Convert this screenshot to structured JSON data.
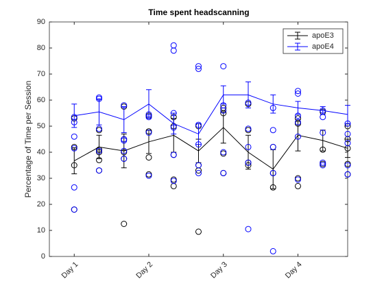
{
  "chart_data": {
    "type": "errorbar_scatter",
    "title": "Time spent headscanning",
    "y_label": "Percentage of Time per Session",
    "x": [
      1,
      2,
      3,
      4,
      5,
      6,
      7,
      8,
      9,
      10,
      11,
      12
    ],
    "xlim": [
      0,
      12
    ],
    "xticks": [
      {
        "value": 1,
        "label": "Day 1"
      },
      {
        "value": 4,
        "label": "Day 2"
      },
      {
        "value": 7,
        "label": "Day 3"
      },
      {
        "value": 10,
        "label": "Day 4"
      }
    ],
    "ylim": [
      0,
      90
    ],
    "yticks": [
      0,
      10,
      20,
      30,
      40,
      50,
      60,
      70,
      80,
      90
    ],
    "legend": "northeast",
    "series": [
      {
        "name": "apoE3",
        "color": "#000000",
        "values": [
          36.7,
          42,
          40.5,
          44,
          46.5,
          40.5,
          49.5,
          40,
          33.5,
          46.5,
          44.5,
          41.5
        ],
        "errors": [
          5,
          4.5,
          6.5,
          4.5,
          6.5,
          4.5,
          6,
          6.5,
          7.5,
          6,
          4,
          3.5
        ],
        "individual": [
          [
            53,
            42,
            35,
            18
          ],
          [
            48.5,
            41,
            40,
            37,
            33
          ],
          [
            57.5,
            45,
            40,
            37.5,
            12.5
          ],
          [
            54,
            48,
            38,
            31.5
          ],
          [
            53.5,
            50,
            39,
            29.5,
            27
          ],
          [
            50,
            35,
            33,
            9.5
          ],
          [
            57,
            55,
            39.5,
            32
          ],
          [
            58.5,
            48.5,
            36,
            35
          ],
          [
            42,
            32,
            26.5
          ],
          [
            53,
            51,
            30,
            27
          ],
          [
            55.5,
            41,
            35.5
          ],
          [
            50,
            45,
            41.5,
            35.5,
            31.5
          ]
        ]
      },
      {
        "name": "apoE4",
        "color": "#0000ff",
        "values": [
          54,
          55.5,
          52.5,
          58.5,
          51,
          47,
          62,
          62,
          58.5,
          57,
          56,
          54.5
        ],
        "errors": [
          4.5,
          5,
          5,
          5.5,
          4,
          4,
          3.5,
          5,
          3.5,
          2.5,
          1.5,
          3.5
        ],
        "individual": [
          [
            53.5,
            51.5,
            46,
            41.5,
            26.5,
            18
          ],
          [
            61,
            60.5,
            49,
            40.5,
            33
          ],
          [
            58,
            45,
            44.5,
            40.5,
            37.5
          ],
          [
            54.5,
            53.5,
            47.5,
            31
          ],
          [
            81,
            79,
            55,
            49.5,
            39,
            29
          ],
          [
            73,
            72,
            50.5,
            43,
            35,
            32
          ],
          [
            73,
            58,
            56,
            40,
            32
          ],
          [
            59,
            49,
            42,
            36,
            10.5
          ],
          [
            57,
            48.5,
            42,
            32,
            2
          ],
          [
            63.5,
            62.5,
            54,
            51.5,
            46,
            29.5
          ],
          [
            56,
            53.5,
            47.5,
            36,
            35
          ],
          [
            51,
            47,
            43.5,
            35,
            31.5
          ]
        ]
      }
    ]
  }
}
